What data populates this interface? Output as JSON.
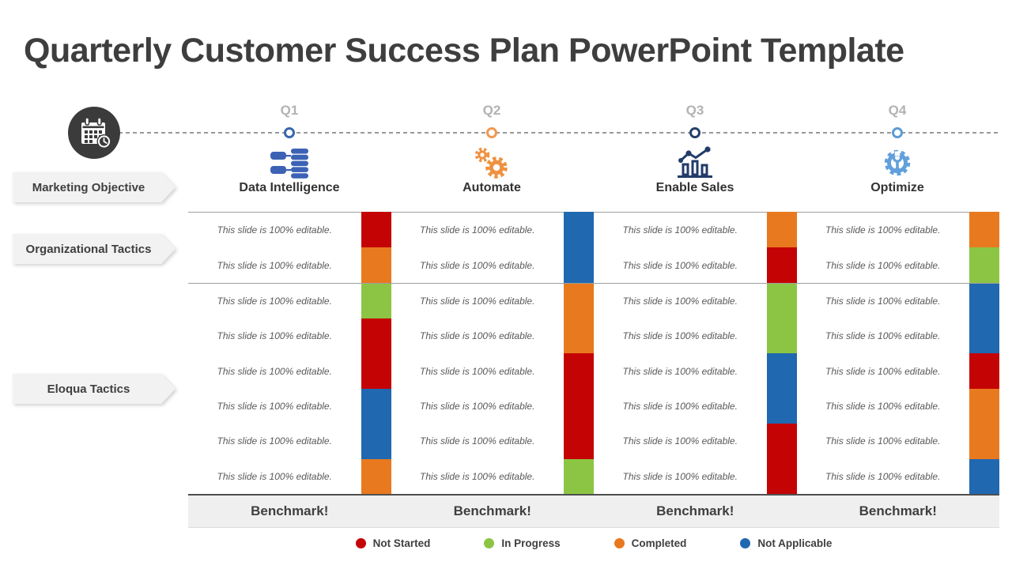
{
  "title": "Quarterly Customer Success Plan PowerPoint Template",
  "banners": [
    {
      "label": "Marketing Objective"
    },
    {
      "label": "Organizational Tactics"
    },
    {
      "label": "Eloqua Tactics"
    }
  ],
  "cell_text": "This slide is 100% editable.",
  "benchmark_label": "Benchmark!",
  "status_colors": {
    "not_started": "#C40404",
    "in_progress": "#8CC544",
    "completed": "#E8791F",
    "not_applicable": "#2068B0"
  },
  "quarters": [
    {
      "label": "Q1",
      "objective": "Data Intelligence",
      "icon": "database-icon",
      "marker_color": "#3767AE",
      "icon_color": "#3C62B5",
      "org_strip": [
        {
          "status": "not_started",
          "rows": 1
        },
        {
          "status": "completed",
          "rows": 1
        }
      ],
      "eloqua_strip": [
        {
          "status": "in_progress",
          "rows": 1
        },
        {
          "status": "not_started",
          "rows": 2
        },
        {
          "status": "not_applicable",
          "rows": 2
        },
        {
          "status": "completed",
          "rows": 1
        }
      ]
    },
    {
      "label": "Q2",
      "objective": "Automate",
      "icon": "gears-icon",
      "marker_color": "#F0984F",
      "icon_color": "#EF9140",
      "org_strip": [
        {
          "status": "not_applicable",
          "rows": 2
        }
      ],
      "eloqua_strip": [
        {
          "status": "completed",
          "rows": 2
        },
        {
          "status": "not_started",
          "rows": 3
        },
        {
          "status": "in_progress",
          "rows": 1
        }
      ]
    },
    {
      "label": "Q3",
      "objective": "Enable Sales",
      "icon": "bar-chart-icon",
      "marker_color": "#263F6A",
      "icon_color": "#223B69",
      "org_strip": [
        {
          "status": "completed",
          "rows": 1
        },
        {
          "status": "not_started",
          "rows": 1
        }
      ],
      "eloqua_strip": [
        {
          "status": "in_progress",
          "rows": 2
        },
        {
          "status": "not_applicable",
          "rows": 2
        },
        {
          "status": "not_started",
          "rows": 2
        }
      ]
    },
    {
      "label": "Q4",
      "objective": "Optimize",
      "icon": "gear-wrench-icon",
      "marker_color": "#5B9BD5",
      "icon_color": "#62A0DC",
      "org_strip": [
        {
          "status": "completed",
          "rows": 1
        },
        {
          "status": "in_progress",
          "rows": 1
        }
      ],
      "eloqua_strip": [
        {
          "status": "not_applicable",
          "rows": 2
        },
        {
          "status": "not_started",
          "rows": 1
        },
        {
          "status": "completed",
          "rows": 2
        },
        {
          "status": "not_applicable",
          "rows": 1
        }
      ]
    }
  ],
  "legend": [
    {
      "label": "Not Started",
      "status": "not_started"
    },
    {
      "label": "In Progress",
      "status": "in_progress"
    },
    {
      "label": "Completed",
      "status": "completed"
    },
    {
      "label": "Not Applicable",
      "status": "not_applicable"
    }
  ]
}
